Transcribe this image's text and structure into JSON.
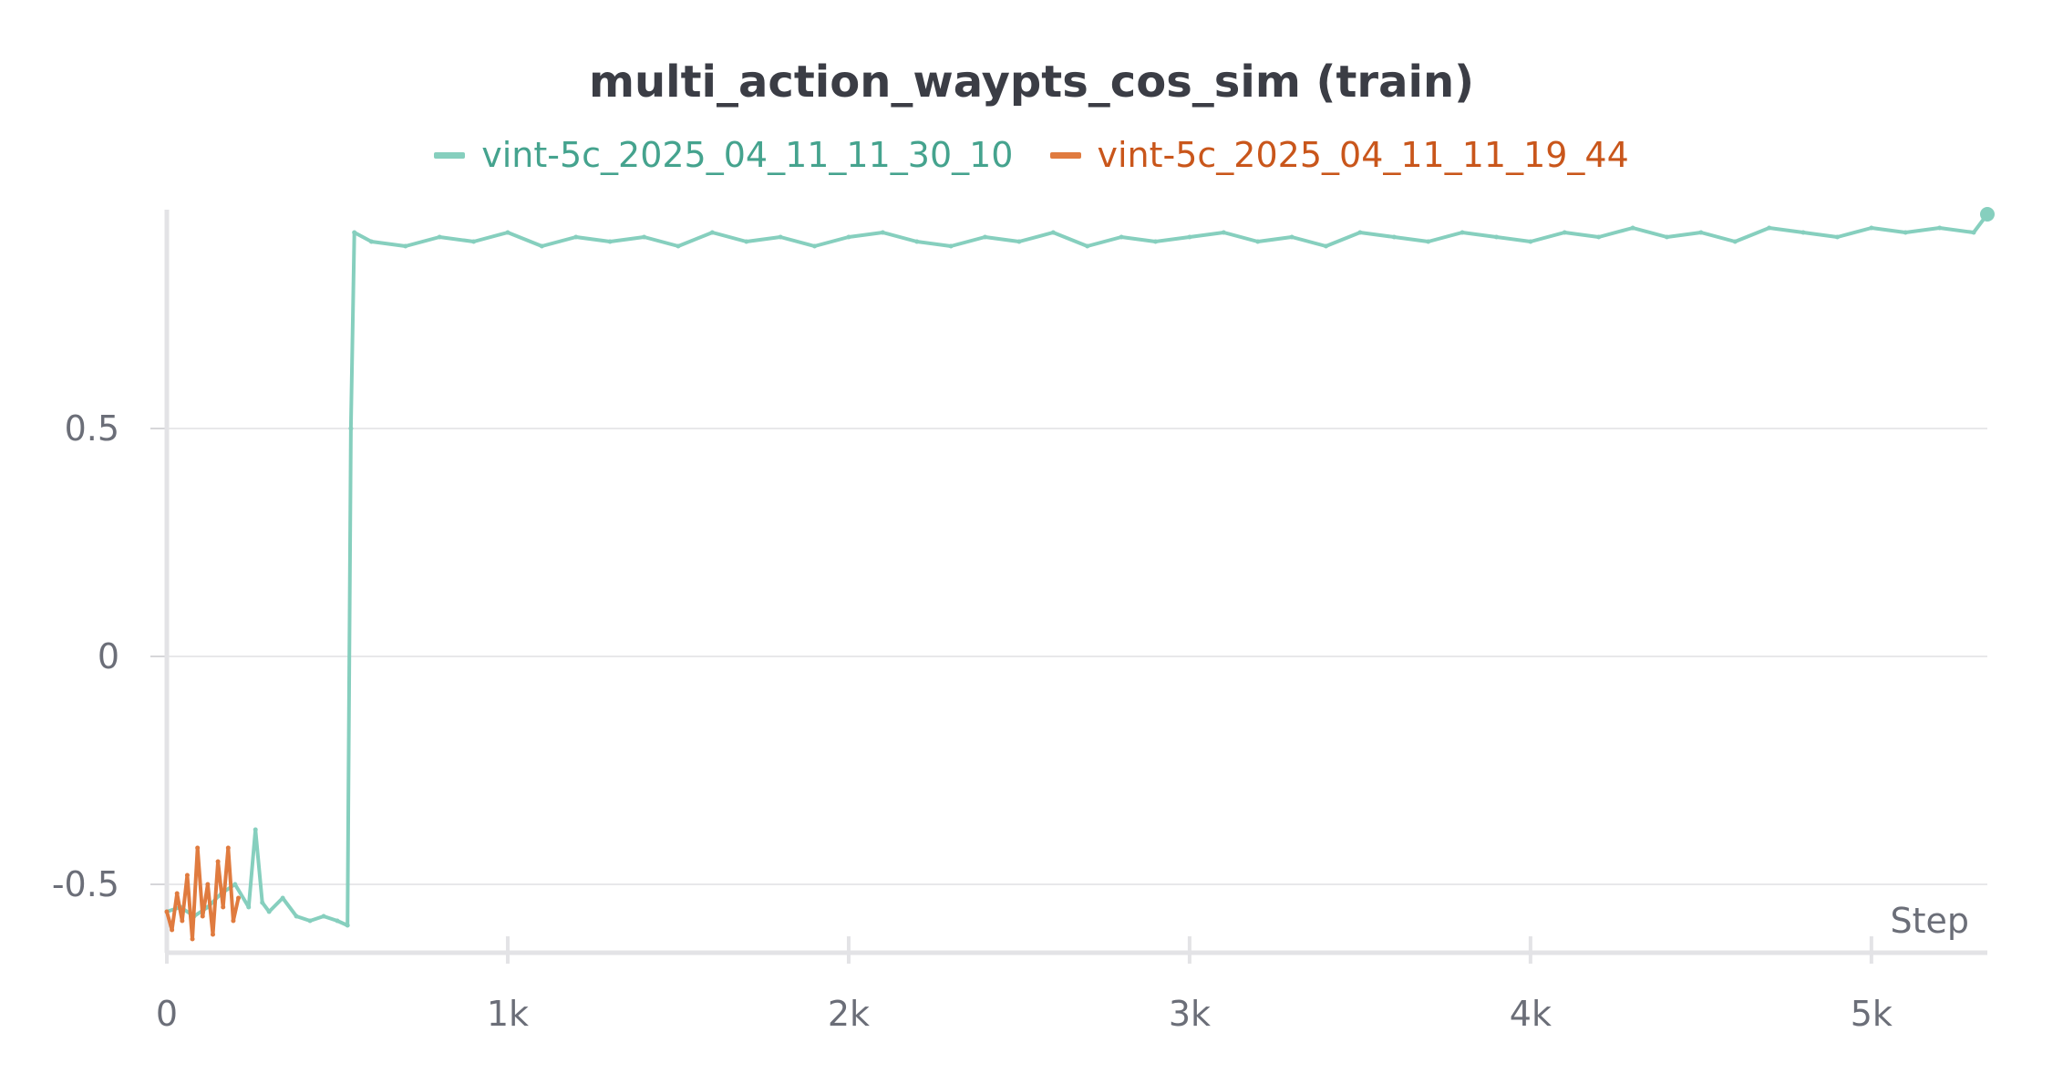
{
  "chart_data": {
    "type": "line",
    "title": "multi_action_waypts_cos_sim (train)",
    "xlabel": "Step",
    "ylabel": "",
    "xlim": [
      0,
      5340
    ],
    "ylim": [
      -0.65,
      0.98
    ],
    "x_ticks": [
      {
        "value": 0,
        "label": "0"
      },
      {
        "value": 1000,
        "label": "1k"
      },
      {
        "value": 2000,
        "label": "2k"
      },
      {
        "value": 3000,
        "label": "3k"
      },
      {
        "value": 4000,
        "label": "4k"
      },
      {
        "value": 5000,
        "label": "5k"
      }
    ],
    "y_ticks": [
      {
        "value": 0.5,
        "label": "0.5"
      },
      {
        "value": 0,
        "label": "0"
      },
      {
        "value": -0.5,
        "label": "-0.5"
      }
    ],
    "grid": true,
    "legend_position": "top-center",
    "series": [
      {
        "name": "vint-5c_2025_04_11_11_30_10",
        "color": "#86cfbe",
        "label_color": "#45a38e",
        "x": [
          0,
          40,
          80,
          120,
          160,
          200,
          240,
          260,
          280,
          300,
          340,
          380,
          420,
          460,
          500,
          530,
          540,
          550,
          600,
          700,
          800,
          900,
          1000,
          1100,
          1200,
          1300,
          1400,
          1500,
          1600,
          1700,
          1800,
          1900,
          2000,
          2100,
          2200,
          2300,
          2400,
          2500,
          2600,
          2700,
          2800,
          2900,
          3000,
          3100,
          3200,
          3300,
          3400,
          3500,
          3600,
          3700,
          3800,
          3900,
          4000,
          4100,
          4200,
          4300,
          4400,
          4500,
          4600,
          4700,
          4800,
          4900,
          5000,
          5100,
          5200,
          5300,
          5340
        ],
        "y": [
          -0.56,
          -0.55,
          -0.57,
          -0.55,
          -0.52,
          -0.5,
          -0.55,
          -0.38,
          -0.54,
          -0.56,
          -0.53,
          -0.57,
          -0.58,
          -0.57,
          -0.58,
          -0.59,
          0.5,
          0.93,
          0.91,
          0.9,
          0.92,
          0.91,
          0.93,
          0.9,
          0.92,
          0.91,
          0.92,
          0.9,
          0.93,
          0.91,
          0.92,
          0.9,
          0.92,
          0.93,
          0.91,
          0.9,
          0.92,
          0.91,
          0.93,
          0.9,
          0.92,
          0.91,
          0.92,
          0.93,
          0.91,
          0.92,
          0.9,
          0.93,
          0.92,
          0.91,
          0.93,
          0.92,
          0.91,
          0.93,
          0.92,
          0.94,
          0.92,
          0.93,
          0.91,
          0.94,
          0.93,
          0.92,
          0.94,
          0.93,
          0.94,
          0.93,
          0.97
        ]
      },
      {
        "name": "vint-5c_2025_04_11_11_19_44",
        "color": "#e07b3f",
        "label_color": "#c9561b",
        "x": [
          0,
          15,
          30,
          45,
          60,
          75,
          90,
          105,
          120,
          135,
          150,
          165,
          180,
          195,
          210
        ],
        "y": [
          -0.56,
          -0.6,
          -0.52,
          -0.58,
          -0.48,
          -0.62,
          -0.42,
          -0.57,
          -0.5,
          -0.61,
          -0.45,
          -0.55,
          -0.42,
          -0.58,
          -0.53
        ]
      }
    ]
  }
}
